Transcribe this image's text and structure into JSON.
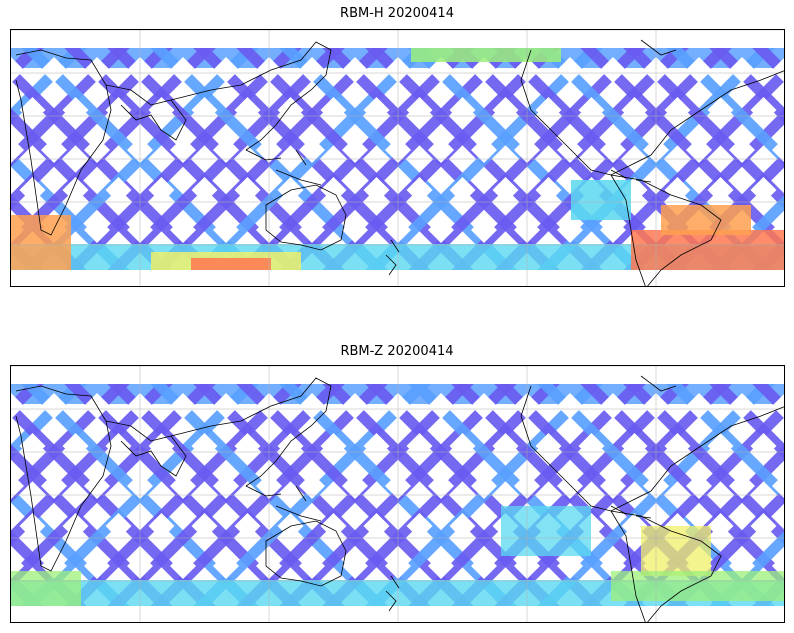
{
  "panels": [
    {
      "id": "top",
      "title": "RBM-H 20200414",
      "variant": "H"
    },
    {
      "id": "bottom",
      "title": "RBM-Z 20200414",
      "variant": "Z"
    }
  ],
  "colors": {
    "track_base": "#6a5cf0",
    "track_light": "#5aa0ff",
    "cyan": "#5ad8f0",
    "green": "#9cf07a",
    "yellow": "#f0f06a",
    "orange": "#ffa050",
    "red": "#ff7850",
    "coast": "#000000",
    "grid": "#b0b0b0"
  },
  "coast_icon": "continent-outline"
}
